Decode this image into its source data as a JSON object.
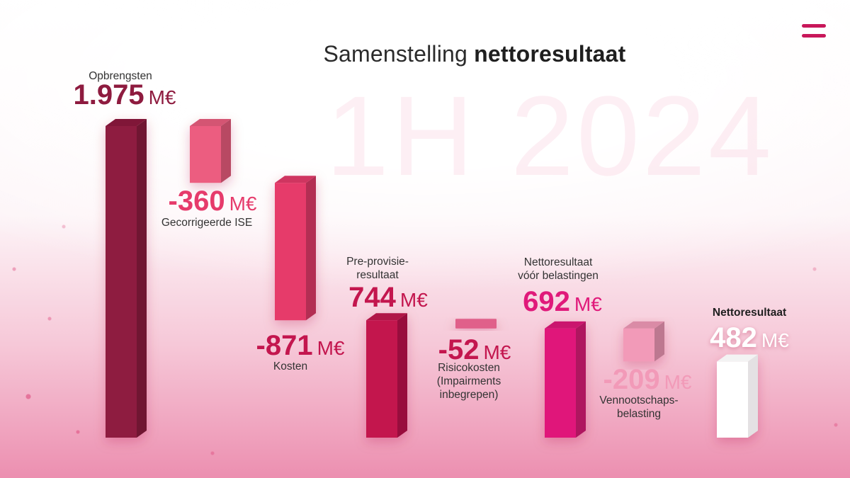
{
  "title": {
    "plain": "Samenstelling ",
    "bold": "nettoresultaat"
  },
  "period_watermark": "1H 2024",
  "colors": {
    "revenue": "#8e1b3f",
    "negative_light": "#ec5d80",
    "costs": "#e63b6b",
    "ppr": "#c3164e",
    "risk": "#e0608a",
    "pretax": "#e0197a",
    "tax": "#f29ab8",
    "net": "#ffffff"
  },
  "chart_data": {
    "type": "waterfall",
    "title": "Samenstelling nettoresultaat",
    "period": "1H 2024",
    "unit": "M€",
    "steps": [
      {
        "key": "revenue",
        "label": "Opbrengsten",
        "value": 1975,
        "display": "1.975",
        "kind": "total",
        "color": "#8e1b3f",
        "value_color": "#8e1b3f"
      },
      {
        "key": "ise",
        "label": "Gecorrigeerde ISE",
        "value": -360,
        "display": "-360",
        "kind": "delta",
        "color": "#ec5d80",
        "value_color": "#e63b6b"
      },
      {
        "key": "costs",
        "label": "Kosten",
        "value": -871,
        "display": "-871",
        "kind": "delta",
        "color": "#e63b6b",
        "value_color": "#c3164e"
      },
      {
        "key": "ppr",
        "label": "Pre-provisie-\nresultaat",
        "value": 744,
        "display": "744",
        "kind": "total",
        "color": "#c3164e",
        "value_color": "#c3164e"
      },
      {
        "key": "risk",
        "label": "Risicokosten\n(Impairments\ninbegrepen)",
        "value": -52,
        "display": "-52",
        "kind": "delta",
        "color": "#e0608a",
        "value_color": "#c3164e"
      },
      {
        "key": "pretax",
        "label": "Nettoresultaat\nvóór belastingen",
        "value": 692,
        "display": "692",
        "kind": "total",
        "color": "#e0197a",
        "value_color": "#e0197a"
      },
      {
        "key": "tax",
        "label": "Vennootschaps-\nbelasting",
        "value": -209,
        "display": "-209",
        "kind": "delta",
        "color": "#f29ab8",
        "value_color": "#f29ab8"
      },
      {
        "key": "net",
        "label": "Nettoresultaat",
        "value": 482,
        "display": "482",
        "kind": "total",
        "color": "#ffffff",
        "value_color": "#ffffff"
      }
    ]
  }
}
